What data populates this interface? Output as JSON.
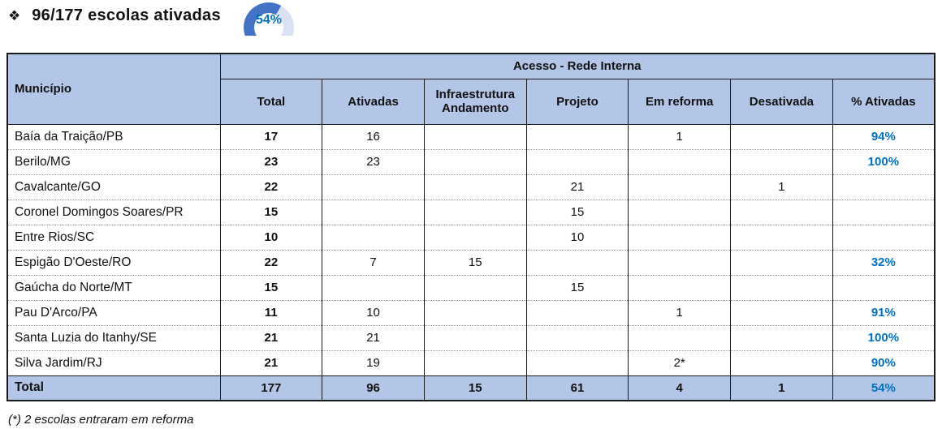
{
  "title": {
    "bullet": "❖",
    "text": "96/177 escolas ativadas"
  },
  "donut": {
    "type": "doughnut",
    "percent": 54,
    "label": "54%",
    "fill_color": "#4472C4",
    "track_color": "#D9E2F3",
    "label_color": "#0070C0"
  },
  "table": {
    "group_header": "Acesso - Rede Interna",
    "municipio_header": "Município",
    "columns": [
      "Total",
      "Ativadas",
      "Infraestrutura Andamento",
      "Projeto",
      "Em reforma",
      "Desativada",
      "% Ativadas"
    ],
    "rows": [
      {
        "cells": [
          "Baía da Traição/PB",
          "17",
          "16",
          "",
          "",
          "1",
          "",
          "94%"
        ]
      },
      {
        "cells": [
          "Berilo/MG",
          "23",
          "23",
          "",
          "",
          "",
          "",
          "100%"
        ]
      },
      {
        "cells": [
          "Cavalcante/GO",
          "22",
          "",
          "",
          "21",
          "",
          "1",
          ""
        ]
      },
      {
        "cells": [
          "Coronel Domingos Soares/PR",
          "15",
          "",
          "",
          "15",
          "",
          "",
          ""
        ]
      },
      {
        "cells": [
          "Entre Rios/SC",
          "10",
          "",
          "",
          "10",
          "",
          "",
          ""
        ]
      },
      {
        "cells": [
          "Espigão D'Oeste/RO",
          "22",
          "7",
          "15",
          "",
          "",
          "",
          "32%"
        ]
      },
      {
        "cells": [
          "Gaúcha do Norte/MT",
          "15",
          "",
          "",
          "15",
          "",
          "",
          ""
        ]
      },
      {
        "cells": [
          "Pau D'Arco/PA",
          "11",
          "10",
          "",
          "",
          "1",
          "",
          "91%"
        ]
      },
      {
        "cells": [
          "Santa Luzia do Itanhy/SE",
          "21",
          "21",
          "",
          "",
          "",
          "",
          "100%"
        ]
      },
      {
        "cells": [
          "Silva Jardim/RJ",
          "21",
          "19",
          "",
          "",
          "2*",
          "",
          "90%"
        ]
      }
    ],
    "total_row": {
      "cells": [
        "Total",
        "177",
        "96",
        "15",
        "61",
        "4",
        "1",
        "54%"
      ]
    }
  },
  "footnote": "(*) 2 escolas entraram em reforma",
  "colors": {
    "header_bg": "#B4C6E7",
    "accent_blue_text": "#0070C0",
    "border_dark": "#1a1a1a",
    "dotted_divider": "#9a9a9a"
  }
}
